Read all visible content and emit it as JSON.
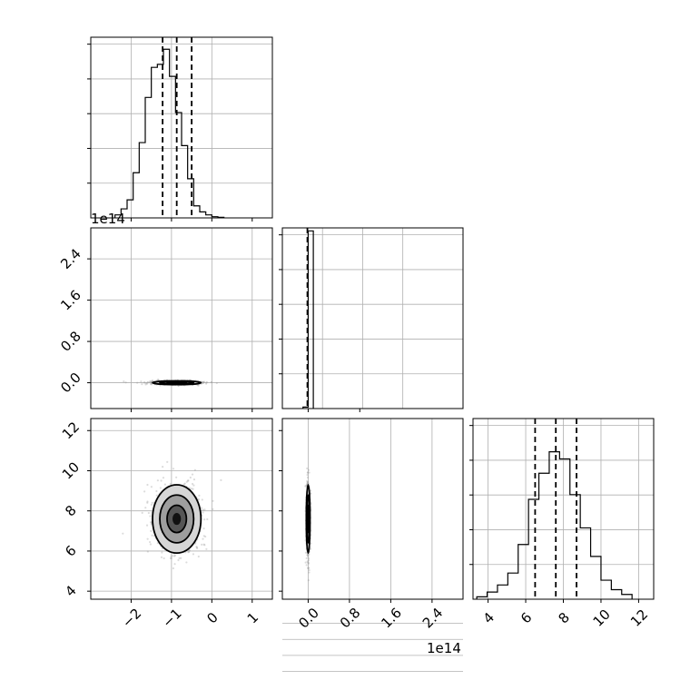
{
  "chart_data": [
    {
      "type": "histogram",
      "panel": "hist-x",
      "bins": [
        -2.4,
        -2.25,
        -2.1,
        -1.95,
        -1.8,
        -1.65,
        -1.5,
        -1.35,
        -1.2,
        -1.05,
        -0.9,
        -0.75,
        -0.6,
        -0.45,
        -0.3,
        -0.15,
        0.0,
        0.15,
        0.3
      ],
      "counts": [
        0.5,
        1.5,
        3,
        7.5,
        12.5,
        20,
        25,
        25.5,
        28,
        23.5,
        17.5,
        12,
        6.5,
        2,
        1,
        0.5,
        0.2,
        0.1
      ],
      "quantile_lines": [
        -1.22,
        -0.87,
        -0.5
      ],
      "xlim": [
        -3.0,
        1.5
      ],
      "ylim": [
        0,
        30
      ],
      "grid": true
    },
    {
      "type": "scatter-contour",
      "panel": "y-vs-x",
      "xlim": [
        -3.0,
        1.5
      ],
      "ylim": [
        -0.5,
        3.0
      ],
      "y_offset": "1e14",
      "y_tick_labels": [
        "0.0",
        "0.8",
        "1.6",
        "2.4"
      ],
      "y_ticks": [
        0.0,
        0.8,
        1.6,
        2.4
      ],
      "center": [
        -0.87,
        0.0
      ],
      "grid": true
    },
    {
      "type": "histogram",
      "panel": "hist-y",
      "bins": [
        -0.1,
        0.0,
        0.1
      ],
      "counts": [
        0.25,
        29.5
      ],
      "quantile_lines": [
        -0.015
      ],
      "xlim": [
        -0.5,
        3.0
      ],
      "ylim": [
        0,
        30
      ],
      "grid": true
    },
    {
      "type": "scatter-contour",
      "panel": "z-vs-x",
      "xlim": [
        -3.0,
        1.5
      ],
      "ylim": [
        3.6,
        12.6
      ],
      "x_ticks": [
        -2,
        -1,
        0,
        1
      ],
      "x_tick_labels": [
        "−2",
        "−1",
        "0",
        "1"
      ],
      "y_ticks": [
        4,
        6,
        8,
        10,
        12
      ],
      "y_tick_labels": [
        "4",
        "6",
        "8",
        "10",
        "12"
      ],
      "center": [
        -0.87,
        7.6
      ],
      "grid": true
    },
    {
      "type": "scatter-contour",
      "panel": "z-vs-y",
      "xlim": [
        -0.5,
        3.0
      ],
      "ylim": [
        3.6,
        12.6
      ],
      "x_ticks": [
        0.0,
        0.8,
        1.6,
        2.4
      ],
      "x_tick_labels": [
        "0.0",
        "0.8",
        "1.6",
        "2.4"
      ],
      "x_offset": "1e14",
      "center": [
        0.0,
        7.6
      ],
      "grid": true
    },
    {
      "type": "histogram",
      "panel": "hist-z",
      "bins": [
        3.4,
        3.95,
        4.5,
        5.05,
        5.6,
        6.15,
        6.7,
        7.25,
        7.8,
        8.35,
        8.9,
        9.45,
        10.0,
        10.55,
        11.1,
        11.65
      ],
      "counts": [
        0.5,
        1.5,
        3,
        5.5,
        11.5,
        21,
        26.5,
        31,
        29.5,
        22,
        15,
        9,
        4,
        2,
        1
      ],
      "quantile_lines": [
        6.5,
        7.6,
        8.7
      ],
      "xlim": [
        3.2,
        12.8
      ],
      "x_ticks": [
        4,
        6,
        8,
        10,
        12
      ],
      "x_tick_labels": [
        "4",
        "6",
        "8",
        "10",
        "12"
      ],
      "ylim": [
        0,
        38
      ],
      "grid": true
    }
  ]
}
